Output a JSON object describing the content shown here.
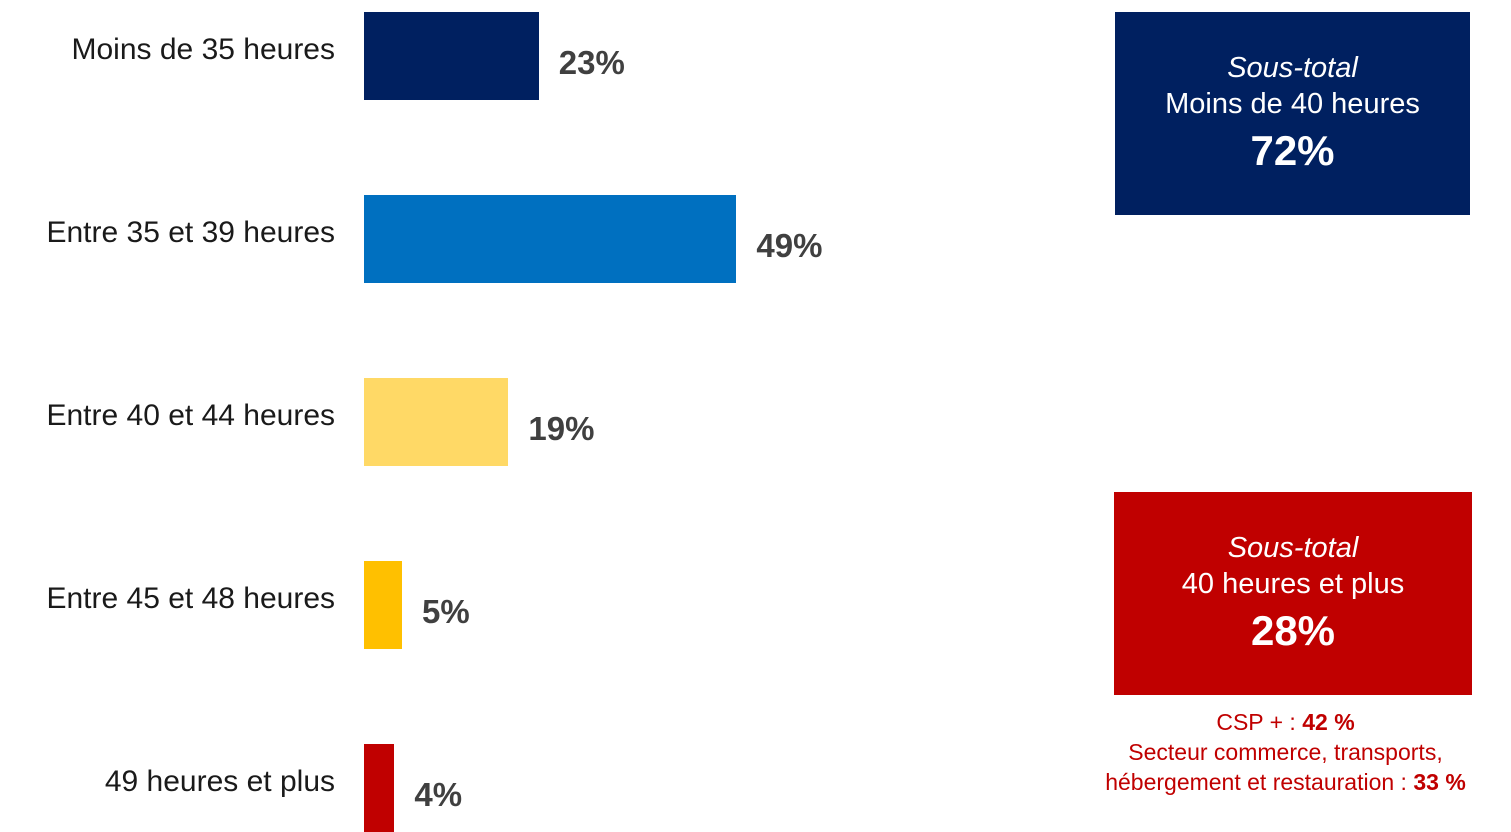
{
  "chart_data": {
    "type": "bar",
    "orientation": "horizontal",
    "categories": [
      "Moins de 35 heures",
      "Entre 35 et 39 heures",
      "Entre 40 et 44 heures",
      "Entre 45 et 48 heures",
      "49 heures et plus"
    ],
    "values": [
      23,
      49,
      19,
      5,
      4
    ],
    "value_labels": [
      "23%",
      "49%",
      "19%",
      "5%",
      "4%"
    ],
    "colors": [
      "#002060",
      "#0070C0",
      "#FFD966",
      "#FFC000",
      "#C00000"
    ],
    "xlim": [
      0,
      100
    ],
    "grid": false,
    "title": "",
    "xlabel": "",
    "ylabel": ""
  },
  "subtotals": [
    {
      "title": "Sous-total",
      "label": "Moins de 40 heures",
      "value": "72%",
      "color": "#002060"
    },
    {
      "title": "Sous-total",
      "label": "40 heures et plus",
      "value": "28%",
      "color": "#C00000"
    }
  ],
  "note": {
    "line1_prefix": "CSP + : ",
    "line1_value": "42 %",
    "line2": "Secteur commerce, transports,",
    "line3_prefix": "hébergement et restauration : ",
    "line3_value": "33 %",
    "color": "#C00000"
  }
}
